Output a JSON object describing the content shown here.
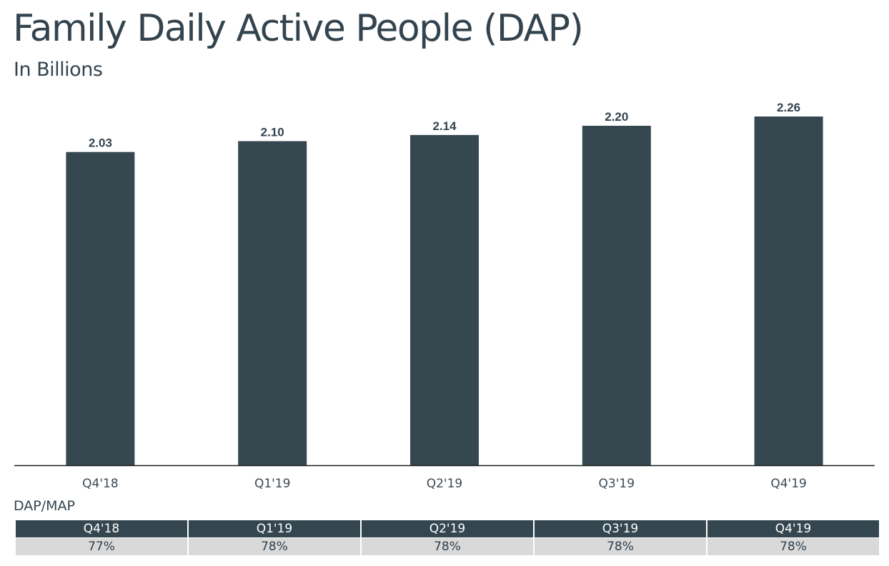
{
  "title": "Family Daily Active People (DAP)",
  "subtitle": "In Billions",
  "colors": {
    "bar": "#35474f",
    "text": "#34444f",
    "table_header_bg": "#34464f",
    "table_row_bg": "#d9d9d9"
  },
  "chart_data": {
    "type": "bar",
    "categories": [
      "Q4'18",
      "Q1'19",
      "Q2'19",
      "Q3'19",
      "Q4'19"
    ],
    "values": [
      2.03,
      2.1,
      2.14,
      2.2,
      2.26
    ],
    "data_labels": [
      "2.03",
      "2.10",
      "2.14",
      "2.20",
      "2.26"
    ],
    "ylim": [
      0,
      2.26
    ],
    "grid": false,
    "legend": "none"
  },
  "table": {
    "label": "DAP/MAP",
    "headers": [
      "Q4'18",
      "Q1'19",
      "Q2'19",
      "Q3'19",
      "Q4'19"
    ],
    "values": [
      "77%",
      "78%",
      "78%",
      "78%",
      "78%"
    ]
  }
}
